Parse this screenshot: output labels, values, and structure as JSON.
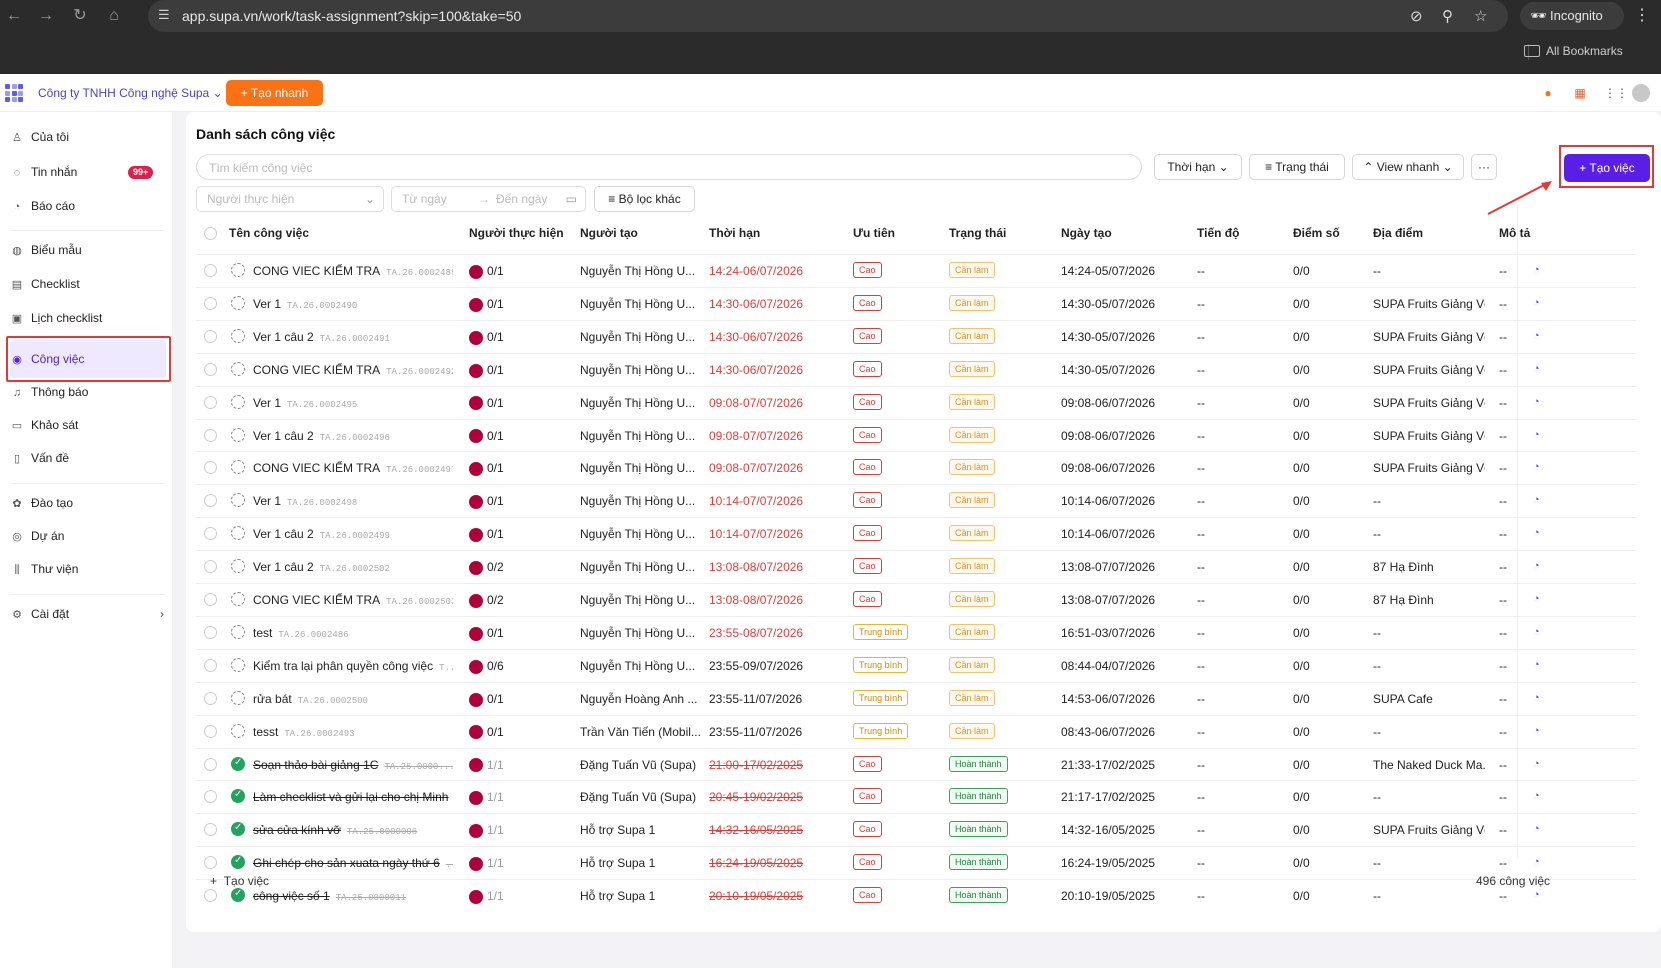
{
  "browser": {
    "url": "app.supa.vn/work/task-assignment?skip=100&take=50",
    "incognito_label": "Incognito",
    "bookmarks_label": "All Bookmarks"
  },
  "appbar": {
    "company": "Công ty TNHH Công nghệ Supa",
    "quick_create": "Tạo nhanh"
  },
  "sidebar": {
    "items": [
      {
        "label": "Của tôi",
        "icon": "user-icon"
      },
      {
        "label": "Tin nhắn",
        "icon": "chat-icon",
        "badge": "99+"
      },
      {
        "label": "Báo cáo",
        "icon": "report-icon"
      },
      {
        "label": "Biểu mẫu",
        "icon": "form-icon"
      },
      {
        "label": "Checklist",
        "icon": "checklist-icon"
      },
      {
        "label": "Lịch checklist",
        "icon": "calendar-icon"
      },
      {
        "label": "Công việc",
        "icon": "task-icon"
      },
      {
        "label": "Thông báo",
        "icon": "bell-icon"
      },
      {
        "label": "Khảo sát",
        "icon": "survey-icon"
      },
      {
        "label": "Vấn đề",
        "icon": "issue-icon"
      },
      {
        "label": "Đào tạo",
        "icon": "training-icon"
      },
      {
        "label": "Dự án",
        "icon": "project-icon"
      },
      {
        "label": "Thư viện",
        "icon": "library-icon"
      },
      {
        "label": "Cài đặt",
        "icon": "gear-icon"
      }
    ]
  },
  "main": {
    "title": "Danh sách công việc",
    "search_placeholder": "Tìm kiếm công việc",
    "filters": {
      "deadline": "Thời hạn",
      "status": "Trạng thái",
      "quick_view": "View nhanh",
      "more": "···",
      "create": "Tạo việc",
      "assignee_placeholder": "Người thực hiện",
      "from_date": "Từ ngày",
      "to_date": "Đến ngày",
      "other_filters": "Bộ lọc khác"
    },
    "columns": [
      "Tên công việc",
      "Người thực hiện",
      "Người tạo",
      "Thời hạn",
      "Ưu tiên",
      "Trạng thái",
      "Ngày tạo",
      "Tiến độ",
      "Điểm số",
      "Địa điểm",
      "Mô tả"
    ],
    "rows": [
      {
        "name": "CONG VIEC KIỂM TRA",
        "code": "TA.26.0002489",
        "assignee": "0/1",
        "creator": "Nguyễn Thị Hồng U...",
        "deadline": "14:24-06/07/2026",
        "priority": "Cao",
        "status": "Cần làm",
        "created": "14:24-05/07/2026",
        "progress": "--",
        "score": "0/0",
        "location": "--",
        "desc": "--"
      },
      {
        "name": "Ver 1",
        "code": "TA.26.0002490",
        "assignee": "0/1",
        "creator": "Nguyễn Thị Hồng U...",
        "deadline": "14:30-06/07/2026",
        "priority": "Cao",
        "status": "Cần làm",
        "created": "14:30-05/07/2026",
        "progress": "--",
        "score": "0/0",
        "location": "SUPA Fruits Giảng Võ",
        "desc": "--"
      },
      {
        "name": "Ver 1 câu 2",
        "code": "TA.26.0002491",
        "assignee": "0/1",
        "creator": "Nguyễn Thị Hồng U...",
        "deadline": "14:30-06/07/2026",
        "priority": "Cao",
        "status": "Cần làm",
        "created": "14:30-05/07/2026",
        "progress": "--",
        "score": "0/0",
        "location": "SUPA Fruits Giảng Võ",
        "desc": "--"
      },
      {
        "name": "CONG VIEC KIỂM TRA",
        "code": "TA.26.0002492",
        "assignee": "0/1",
        "creator": "Nguyễn Thị Hồng U...",
        "deadline": "14:30-06/07/2026",
        "priority": "Cao",
        "status": "Cần làm",
        "created": "14:30-05/07/2026",
        "progress": "--",
        "score": "0/0",
        "location": "SUPA Fruits Giảng Võ",
        "desc": "--"
      },
      {
        "name": "Ver 1",
        "code": "TA.26.0002495",
        "assignee": "0/1",
        "creator": "Nguyễn Thị Hồng U...",
        "deadline": "09:08-07/07/2026",
        "priority": "Cao",
        "status": "Cần làm",
        "created": "09:08-06/07/2026",
        "progress": "--",
        "score": "0/0",
        "location": "SUPA Fruits Giảng Võ",
        "desc": "--"
      },
      {
        "name": "Ver 1 câu 2",
        "code": "TA.26.0002496",
        "assignee": "0/1",
        "creator": "Nguyễn Thị Hồng U...",
        "deadline": "09:08-07/07/2026",
        "priority": "Cao",
        "status": "Cần làm",
        "created": "09:08-06/07/2026",
        "progress": "--",
        "score": "0/0",
        "location": "SUPA Fruits Giảng Võ",
        "desc": "--"
      },
      {
        "name": "CONG VIEC KIỂM TRA",
        "code": "TA.26.0002497",
        "assignee": "0/1",
        "creator": "Nguyễn Thị Hồng U...",
        "deadline": "09:08-07/07/2026",
        "priority": "Cao",
        "status": "Cần làm",
        "created": "09:08-06/07/2026",
        "progress": "--",
        "score": "0/0",
        "location": "SUPA Fruits Giảng Võ",
        "desc": "--"
      },
      {
        "name": "Ver 1",
        "code": "TA.26.0002498",
        "assignee": "0/1",
        "creator": "Nguyễn Thị Hồng U...",
        "deadline": "10:14-07/07/2026",
        "priority": "Cao",
        "status": "Cần làm",
        "created": "10:14-06/07/2026",
        "progress": "--",
        "score": "0/0",
        "location": "--",
        "desc": "--"
      },
      {
        "name": "Ver 1 câu 2",
        "code": "TA.26.0002499",
        "assignee": "0/1",
        "creator": "Nguyễn Thị Hồng U...",
        "deadline": "10:14-07/07/2026",
        "priority": "Cao",
        "status": "Cần làm",
        "created": "10:14-06/07/2026",
        "progress": "--",
        "score": "0/0",
        "location": "--",
        "desc": "--"
      },
      {
        "name": "Ver 1 câu 2",
        "code": "TA.26.0002502",
        "assignee": "0/2",
        "creator": "Nguyễn Thị Hồng U...",
        "deadline": "13:08-08/07/2026",
        "priority": "Cao",
        "status": "Cần làm",
        "created": "13:08-07/07/2026",
        "progress": "--",
        "score": "0/0",
        "location": "87 Hạ Đình",
        "desc": "--"
      },
      {
        "name": "CONG VIEC KIỂM TRA",
        "code": "TA.26.0002503",
        "assignee": "0/2",
        "creator": "Nguyễn Thị Hồng U...",
        "deadline": "13:08-08/07/2026",
        "priority": "Cao",
        "status": "Cần làm",
        "created": "13:08-07/07/2026",
        "progress": "--",
        "score": "0/0",
        "location": "87 Hạ Đình",
        "desc": "--"
      },
      {
        "name": "test",
        "code": "TA.26.0002486",
        "assignee": "0/1",
        "creator": "Nguyễn Thị Hồng U...",
        "deadline": "23:55-08/07/2026",
        "priority": "Trung bình",
        "status": "Cần làm",
        "created": "16:51-03/07/2026",
        "progress": "--",
        "score": "0/0",
        "location": "--",
        "desc": "--"
      },
      {
        "name": "Kiểm tra lại phân quyền công việc",
        "code": "T...",
        "assignee": "0/6",
        "creator": "Nguyễn Thị Hồng U...",
        "deadline": "23:55-09/07/2026",
        "priority": "Trung bình",
        "status": "Cần làm",
        "created": "08:44-04/07/2026",
        "progress": "--",
        "score": "0/0",
        "location": "--",
        "desc": "--"
      },
      {
        "name": "rửa bát",
        "code": "TA.26.0002500",
        "assignee": "0/1",
        "creator": "Nguyễn Hoàng Anh ...",
        "deadline": "23:55-11/07/2026",
        "priority": "Trung bình",
        "status": "Cần làm",
        "created": "14:53-06/07/2026",
        "progress": "--",
        "score": "0/0",
        "location": "SUPA Cafe",
        "desc": "--"
      },
      {
        "name": "tesst",
        "code": "TA.26.0002493",
        "assignee": "0/1",
        "creator": "Trần Văn Tiến (Mobil...",
        "deadline": "23:55-11/07/2026",
        "priority": "Trung bình",
        "status": "Cần làm",
        "created": "08:43-06/07/2026",
        "progress": "--",
        "score": "0/0",
        "location": "--",
        "desc": "--"
      },
      {
        "name": "Soạn thảo bài giảng 1C",
        "code": "TA.25.0000...",
        "assignee": "1/1",
        "creator": "Đặng Tuấn Vũ (Supa)",
        "deadline": "21:00-17/02/2025",
        "priority": "Cao",
        "status": "Hoàn thành",
        "created": "21:33-17/02/2025",
        "progress": "--",
        "score": "0/0",
        "location": "The Naked Duck Ma...",
        "desc": "--"
      },
      {
        "name": "Làm checklist và gửi lại cho chị Minh",
        "code": "...",
        "assignee": "1/1",
        "creator": "Đặng Tuấn Vũ (Supa)",
        "deadline": "20:45-19/02/2025",
        "priority": "Cao",
        "status": "Hoàn thành",
        "created": "21:17-17/02/2025",
        "progress": "--",
        "score": "0/0",
        "location": "--",
        "desc": "--"
      },
      {
        "name": "sửa cửa kính vỡ",
        "code": "TA.25.0000006",
        "assignee": "1/1",
        "creator": "Hỗ trợ Supa 1",
        "deadline": "14:32-16/05/2025",
        "priority": "Cao",
        "status": "Hoàn thành",
        "created": "14:32-16/05/2025",
        "progress": "--",
        "score": "0/0",
        "location": "SUPA Fruits Giảng Võ",
        "desc": "--"
      },
      {
        "name": "Ghi chép cho sản xuata ngày thứ 6",
        "code": "...",
        "assignee": "1/1",
        "creator": "Hỗ trợ Supa 1",
        "deadline": "16:24-19/05/2025",
        "priority": "Cao",
        "status": "Hoàn thành",
        "created": "16:24-19/05/2025",
        "progress": "--",
        "score": "0/0",
        "location": "--",
        "desc": "--"
      },
      {
        "name": "công việc số 1",
        "code": "TA.25.0000011",
        "assignee": "1/1",
        "creator": "Hỗ trợ Supa 1",
        "deadline": "20:10-19/05/2025",
        "priority": "Cao",
        "status": "Hoàn thành",
        "created": "20:10-19/05/2025",
        "progress": "--",
        "score": "0/0",
        "location": "--",
        "desc": "--"
      }
    ],
    "footer": {
      "add_task": "Tạo việc",
      "count": "496 công việc"
    }
  }
}
